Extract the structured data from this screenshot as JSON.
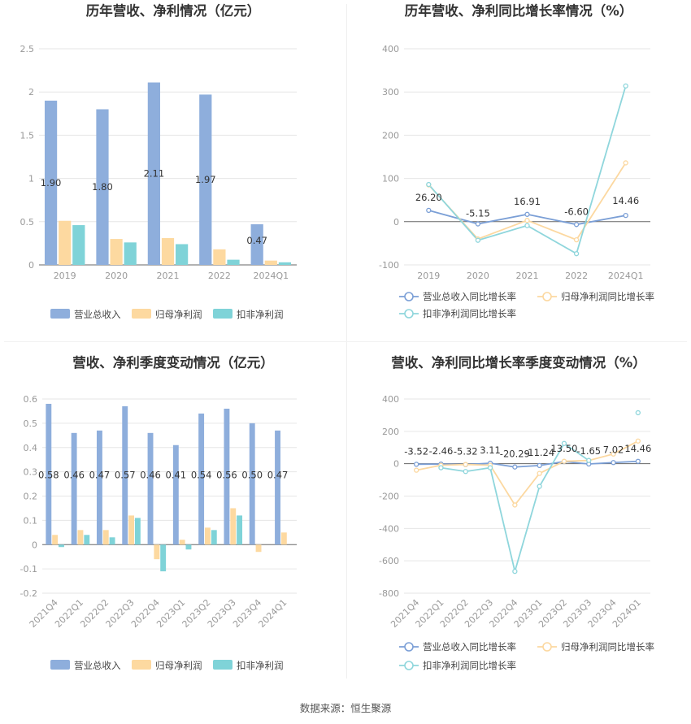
{
  "colors": {
    "revenue": "#8eaedc",
    "net_profit": "#fdd9a0",
    "deducted_profit": "#7fd3d8",
    "revenue_line": "#7b9fd6",
    "net_line": "#fcd8a0",
    "deducted_line": "#8fd6dc"
  },
  "footer": {
    "source": "数据来源：恒生聚源"
  },
  "chart_data": [
    {
      "type": "bar",
      "title": "历年营收、净利情况（亿元）",
      "categories": [
        "2019",
        "2020",
        "2021",
        "2022",
        "2024Q1"
      ],
      "series": [
        {
          "name": "营业总收入",
          "values": [
            1.9,
            1.8,
            2.11,
            1.97,
            0.47
          ]
        },
        {
          "name": "归母净利润",
          "values": [
            0.51,
            0.3,
            0.31,
            0.18,
            0.05
          ]
        },
        {
          "name": "扣非净利润",
          "values": [
            0.46,
            0.26,
            0.24,
            0.06,
            0.03
          ]
        }
      ],
      "data_labels": [
        "1.90",
        "1.80",
        "2.11",
        "1.97",
        "0.47"
      ],
      "ylim": [
        0,
        2.5
      ],
      "yticks": [
        "0",
        "0.5",
        "1",
        "1.5",
        "2",
        "2.5"
      ],
      "legend_position": "bottom"
    },
    {
      "type": "line",
      "title": "历年营收、净利同比增长率情况（%）",
      "categories": [
        "2019",
        "2020",
        "2021",
        "2022",
        "2024Q1"
      ],
      "series": [
        {
          "name": "营业总收入同比增长率",
          "values": [
            26.2,
            -5.15,
            16.91,
            -6.6,
            14.46
          ]
        },
        {
          "name": "归母净利润同比增长率",
          "values": [
            85,
            -40,
            3,
            -42,
            136
          ]
        },
        {
          "name": "扣非净利润同比增长率",
          "values": [
            86,
            -43,
            -9,
            -74,
            314
          ]
        }
      ],
      "data_labels": [
        "26.20",
        "-5.15",
        "16.91",
        "-6.60",
        "14.46"
      ],
      "ylim": [
        -100,
        400
      ],
      "yticks": [
        "-100",
        "0",
        "100",
        "200",
        "300",
        "400"
      ],
      "legend_position": "bottom"
    },
    {
      "type": "bar",
      "title": "营收、净利季度变动情况（亿元）",
      "categories": [
        "2021Q4",
        "2022Q1",
        "2022Q2",
        "2022Q3",
        "2022Q4",
        "2023Q1",
        "2023Q2",
        "2023Q3",
        "2023Q4",
        "2024Q1"
      ],
      "series": [
        {
          "name": "营业总收入",
          "values": [
            0.58,
            0.46,
            0.47,
            0.57,
            0.46,
            0.41,
            0.54,
            0.56,
            0.5,
            0.47
          ]
        },
        {
          "name": "归母净利润",
          "values": [
            0.04,
            0.06,
            0.06,
            0.12,
            -0.06,
            0.02,
            0.07,
            0.15,
            -0.03,
            0.05
          ]
        },
        {
          "name": "扣非净利润",
          "values": [
            -0.01,
            0.04,
            0.03,
            0.11,
            -0.11,
            -0.02,
            0.06,
            0.12,
            null,
            null
          ]
        }
      ],
      "data_labels": [
        "0.58",
        "0.46",
        "0.47",
        "0.57",
        "0.46",
        "0.41",
        "0.54",
        "0.56",
        "0.50",
        "0.47"
      ],
      "ylim": [
        -0.2,
        0.6
      ],
      "yticks": [
        "-0.2",
        "-0.1",
        "0",
        "0.1",
        "0.2",
        "0.3",
        "0.4",
        "0.5",
        "0.6"
      ],
      "legend_position": "bottom"
    },
    {
      "type": "line",
      "title": "营收、净利同比增长率季度变动情况（%）",
      "categories": [
        "2021Q4",
        "2022Q1",
        "2022Q2",
        "2022Q3",
        "2022Q4",
        "2023Q1",
        "2023Q2",
        "2023Q3",
        "2023Q4",
        "2024Q1"
      ],
      "series": [
        {
          "name": "营业总收入同比增长率",
          "values": [
            -3.52,
            -2.46,
            -5.32,
            3.11,
            -20.29,
            -11.24,
            13.5,
            -1.65,
            7.02,
            14.46
          ]
        },
        {
          "name": "归母净利润同比增长率",
          "values": [
            -40,
            -10,
            -5,
            -10,
            -255,
            -60,
            15,
            20,
            60,
            140
          ]
        },
        {
          "name": "扣非净利润同比增长率",
          "values": [
            null,
            -25,
            -48,
            -25,
            -665,
            -140,
            125,
            20,
            null,
            315
          ]
        }
      ],
      "data_labels": [
        "-3.52",
        "-2.46",
        "-5.32",
        "3.11",
        "-20.29",
        "-11.24",
        "13.50",
        "-1.65",
        "7.02",
        "14.46"
      ],
      "ylim": [
        -800,
        400
      ],
      "yticks": [
        "-800",
        "-600",
        "-400",
        "-200",
        "0",
        "200",
        "400"
      ],
      "legend_position": "bottom"
    }
  ]
}
